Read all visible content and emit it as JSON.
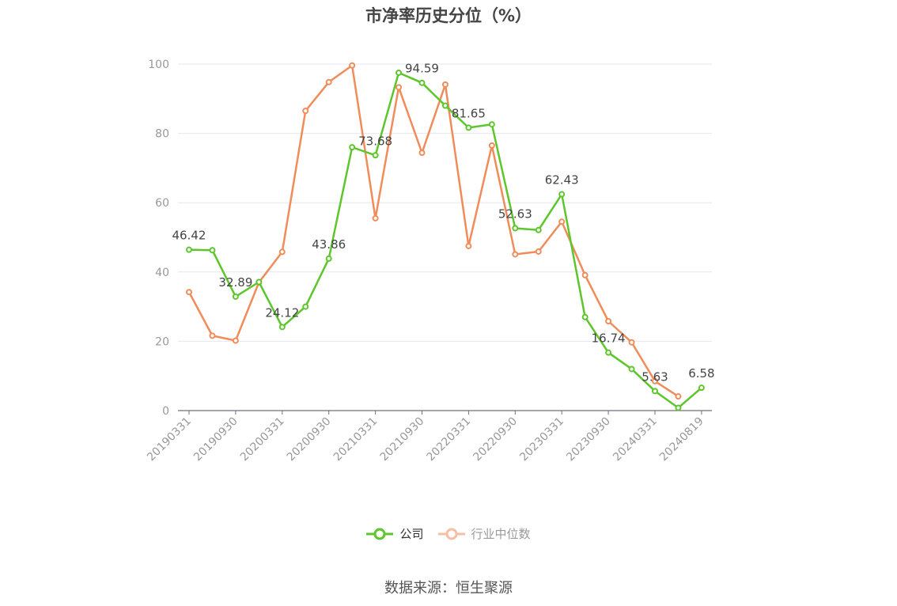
{
  "chart_data": {
    "type": "line",
    "title": "市净率历史分位（%）",
    "xlabel": "",
    "ylabel": "",
    "ylim": [
      0,
      100
    ],
    "yticks": [
      0,
      20,
      40,
      60,
      80,
      100
    ],
    "grid": true,
    "legend_position": "bottom",
    "x": [
      "20190331",
      "20190630",
      "20190930",
      "20191231",
      "20200331",
      "20200630",
      "20200930",
      "20201231",
      "20210331",
      "20210630",
      "20210930",
      "20211231",
      "20220331",
      "20220630",
      "20220930",
      "20221231",
      "20230331",
      "20230630",
      "20230930",
      "20231231",
      "20240331",
      "20240630",
      "20240819"
    ],
    "x_tick_labels": [
      "20190331",
      "20190930",
      "20200331",
      "20200930",
      "20210331",
      "20210930",
      "20220331",
      "20220930",
      "20230331",
      "20230930",
      "20240331",
      "20240819"
    ],
    "series": [
      {
        "name": "公司",
        "color": "#5dc62b",
        "values": [
          46.42,
          46.3,
          32.89,
          37.1,
          24.12,
          30.0,
          43.86,
          76.0,
          73.68,
          97.5,
          94.59,
          88.0,
          81.65,
          82.6,
          52.63,
          52.1,
          62.43,
          27.0,
          16.74,
          12.0,
          5.63,
          0.8,
          6.58
        ],
        "labels": [
          "46.42",
          null,
          "32.89",
          null,
          "24.12",
          null,
          "43.86",
          null,
          "73.68",
          null,
          "94.59",
          null,
          "81.65",
          null,
          "52.63",
          null,
          "62.43",
          null,
          "16.74",
          null,
          "5.63",
          null,
          "6.58"
        ]
      },
      {
        "name": "行业中位数",
        "color": "#f08c5a",
        "values": [
          34.2,
          21.6,
          20.2,
          37.0,
          45.8,
          86.5,
          94.8,
          99.6,
          55.5,
          93.3,
          74.4,
          94.1,
          47.5,
          76.5,
          45.1,
          45.9,
          54.5,
          39.1,
          25.8,
          19.7,
          8.5,
          4.1,
          null
        ]
      }
    ]
  },
  "legend": {
    "company_label": "公司",
    "industry_label": "行业中位数"
  },
  "source": "数据来源：恒生聚源"
}
